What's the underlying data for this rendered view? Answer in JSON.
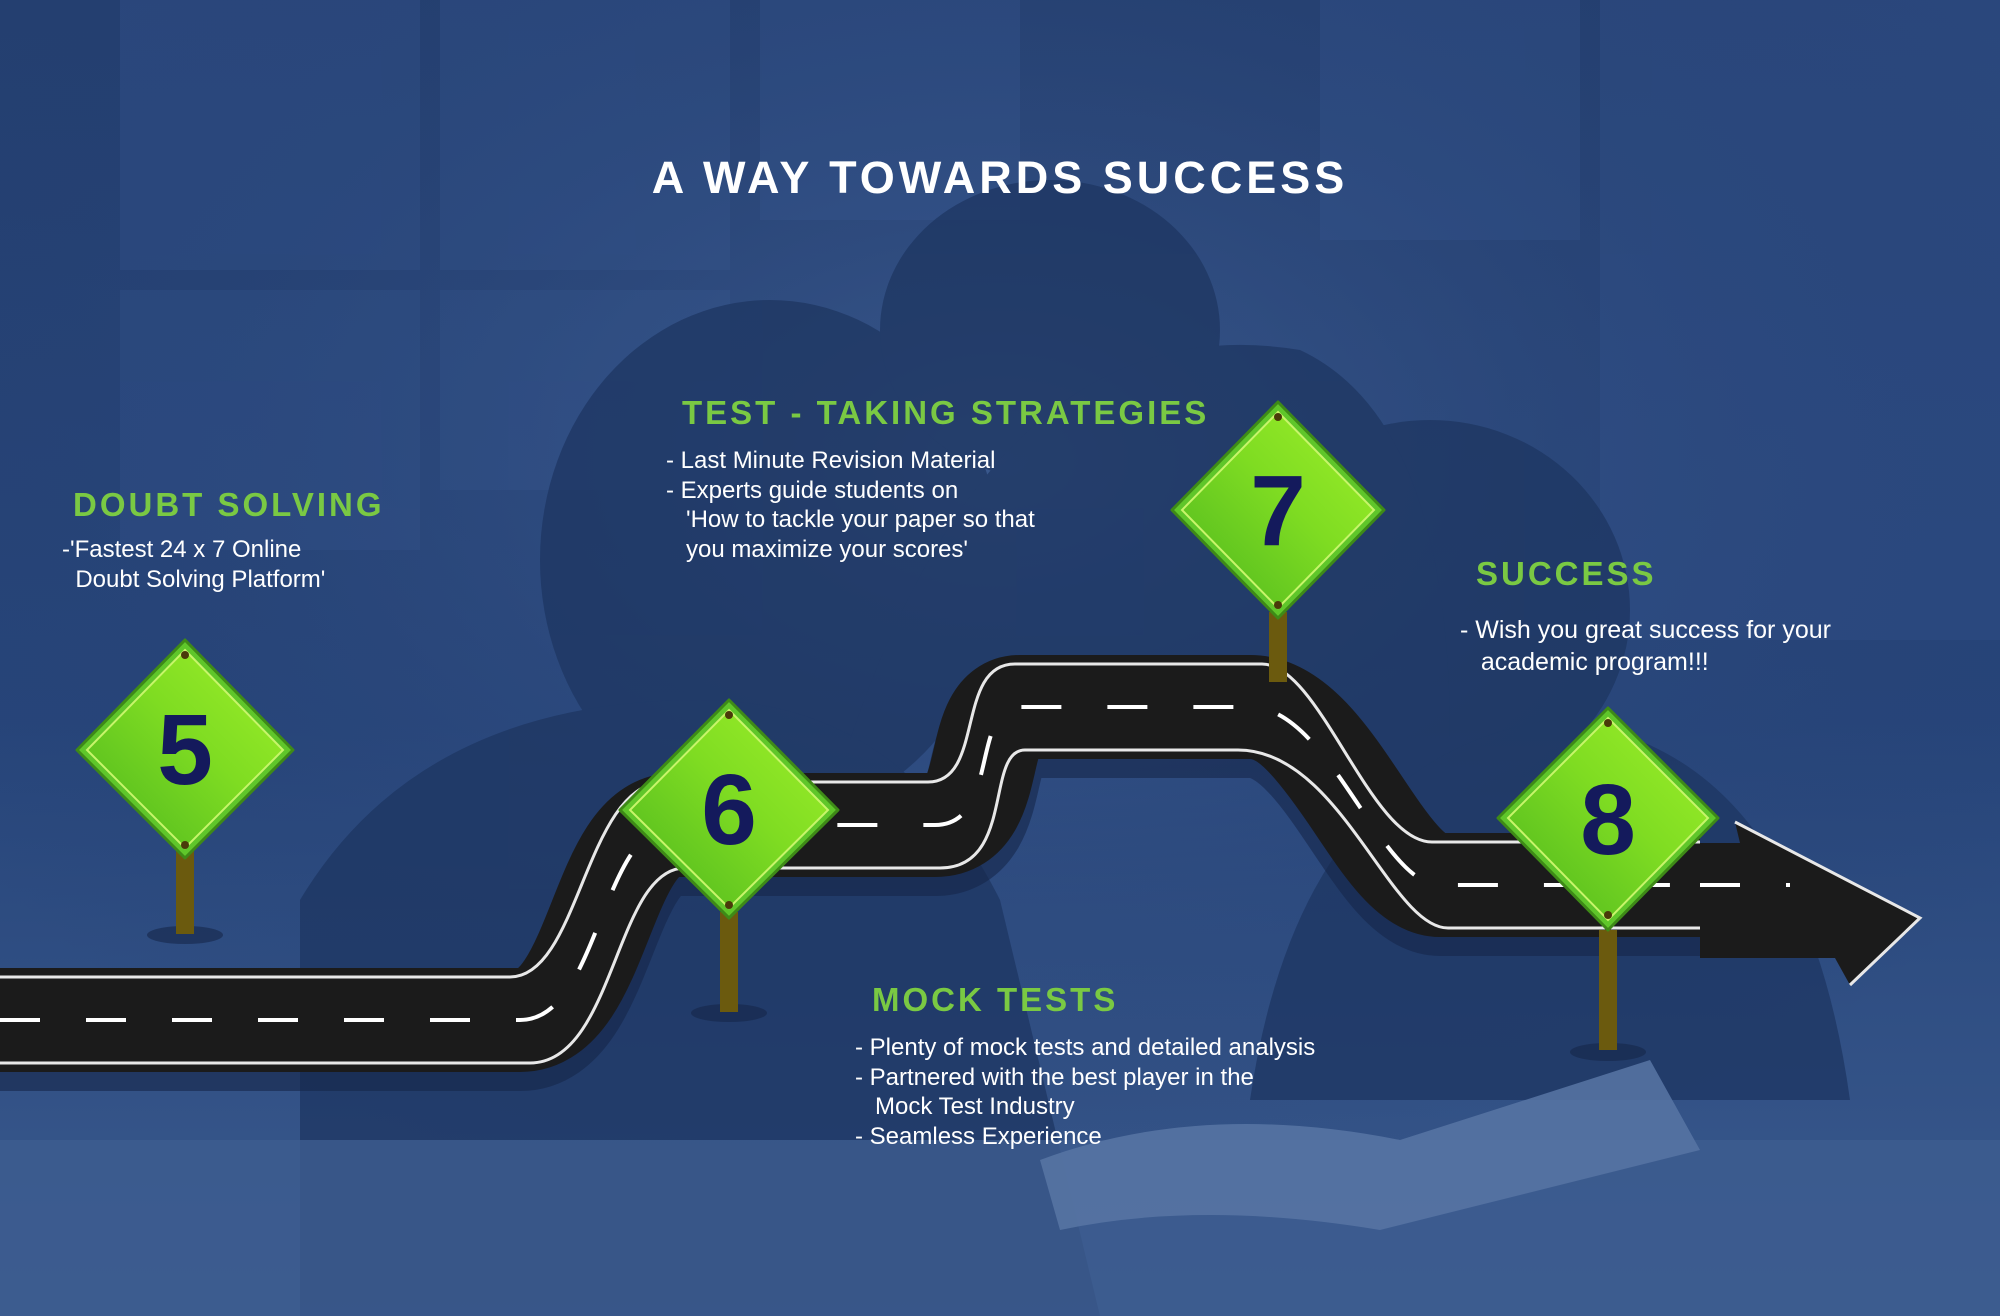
{
  "page": {
    "title": "A WAY TOWARDS SUCCESS",
    "colors": {
      "accent_green": "#7ac943",
      "sign_green": "#8ee21f",
      "sign_number": "#141a5c",
      "road": "#1b1b1b",
      "background_tint": "#1f3a6b"
    }
  },
  "steps": [
    {
      "number": "5",
      "title": "DOUBT SOLVING",
      "lines": [
        "-'Fastest 24 x 7 Online",
        "  Doubt Solving Platform'"
      ]
    },
    {
      "number": "6",
      "title": "MOCK TESTS",
      "lines": [
        "- Plenty of mock tests and detailed analysis",
        "- Partnered with the best player in the",
        "   Mock Test Industry",
        "- Seamless Experience"
      ]
    },
    {
      "number": "7",
      "title": "TEST - TAKING STRATEGIES",
      "lines": [
        "- Last Minute Revision Material",
        "- Experts guide students on",
        "   'How to tackle your paper so that",
        "   you maximize your scores'"
      ]
    },
    {
      "number": "8",
      "title": "SUCCESS",
      "lines": [
        "- Wish you great success for your",
        "   academic program!!!"
      ]
    }
  ]
}
